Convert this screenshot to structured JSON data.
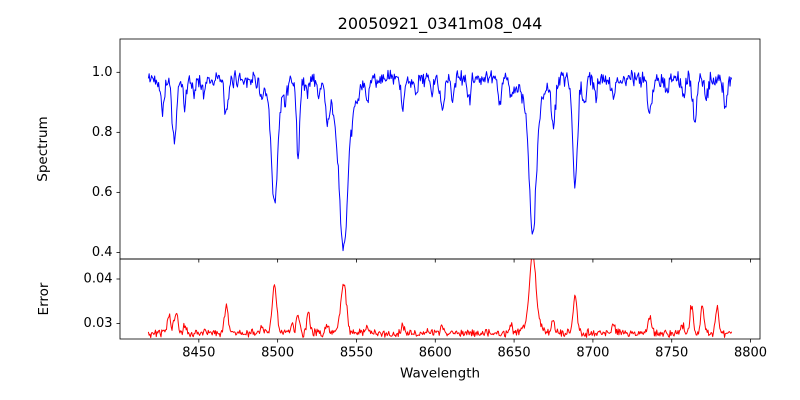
{
  "chart_data": {
    "type": "line",
    "title": "20050921_0341m08_044",
    "xlabel": "Wavelength",
    "grid": false,
    "legend": null,
    "xlim": [
      8400,
      8806
    ],
    "xticks": [
      8450,
      8500,
      8550,
      8600,
      8650,
      8700,
      8750,
      8800
    ],
    "xtick_labels": [
      "8450",
      "8500",
      "8550",
      "8600",
      "8650",
      "8700",
      "8750",
      "8800"
    ],
    "noise_seed": 42,
    "charts": [
      {
        "series_name": "spectrum-line",
        "ylabel": "Spectrum",
        "color": "#0000ff",
        "ylim": [
          0.378,
          1.111
        ],
        "yticks": [
          0.4,
          0.6,
          0.8,
          1.0
        ],
        "ytick_labels": [
          "0.4",
          "0.6",
          "0.8",
          "1.0"
        ],
        "model": {
          "x_start": 8418,
          "x_end": 8788,
          "x_step": 0.5,
          "base": 0.978,
          "noise": 0.033,
          "features": [
            {
              "center": 8427.0,
              "amp": -0.095,
              "sigma": 1.2
            },
            {
              "center": 8434.5,
              "amp": -0.21,
              "sigma": 1.4
            },
            {
              "center": 8441.0,
              "amp": -0.09,
              "sigma": 1.1
            },
            {
              "center": 8447.0,
              "amp": -0.05,
              "sigma": 1.0
            },
            {
              "center": 8453.0,
              "amp": -0.045,
              "sigma": 1.0
            },
            {
              "center": 8467.5,
              "amp": -0.125,
              "sigma": 1.3
            },
            {
              "center": 8490.0,
              "amp": -0.055,
              "sigma": 1.0
            },
            {
              "center": 8498.0,
              "amp": -0.33,
              "sigma": 1.9
            },
            {
              "center": 8498.0,
              "amp": -0.09,
              "sigma": 4.5
            },
            {
              "center": 8505.0,
              "amp": -0.04,
              "sigma": 0.9
            },
            {
              "center": 8513.0,
              "amp": -0.245,
              "sigma": 1.1
            },
            {
              "center": 8518.5,
              "amp": -0.05,
              "sigma": 0.9
            },
            {
              "center": 8526.0,
              "amp": -0.05,
              "sigma": 0.9
            },
            {
              "center": 8531.5,
              "amp": -0.1,
              "sigma": 1.1
            },
            {
              "center": 8541.8,
              "amp": -0.38,
              "sigma": 2.4
            },
            {
              "center": 8541.8,
              "amp": -0.19,
              "sigma": 6.0
            },
            {
              "center": 8557.0,
              "amp": -0.07,
              "sigma": 1.0
            },
            {
              "center": 8579.5,
              "amp": -0.1,
              "sigma": 1.1
            },
            {
              "center": 8588.0,
              "amp": -0.05,
              "sigma": 0.9
            },
            {
              "center": 8598.0,
              "amp": -0.05,
              "sigma": 0.9
            },
            {
              "center": 8604.5,
              "amp": -0.11,
              "sigma": 1.1
            },
            {
              "center": 8611.0,
              "amp": -0.06,
              "sigma": 0.9
            },
            {
              "center": 8621.5,
              "amp": -0.07,
              "sigma": 1.0
            },
            {
              "center": 8641.0,
              "amp": -0.07,
              "sigma": 1.0
            },
            {
              "center": 8648.5,
              "amp": -0.07,
              "sigma": 1.0
            },
            {
              "center": 8661.8,
              "amp": -0.4,
              "sigma": 2.1
            },
            {
              "center": 8661.8,
              "amp": -0.12,
              "sigma": 5.5
            },
            {
              "center": 8675.0,
              "amp": -0.155,
              "sigma": 1.2
            },
            {
              "center": 8688.6,
              "amp": -0.345,
              "sigma": 1.6
            },
            {
              "center": 8694.5,
              "amp": -0.1,
              "sigma": 1.0
            },
            {
              "center": 8702.0,
              "amp": -0.05,
              "sigma": 0.9
            },
            {
              "center": 8713.0,
              "amp": -0.07,
              "sigma": 1.0
            },
            {
              "center": 8736.0,
              "amp": -0.12,
              "sigma": 1.2
            },
            {
              "center": 8747.0,
              "amp": -0.05,
              "sigma": 0.9
            },
            {
              "center": 8757.5,
              "amp": -0.07,
              "sigma": 1.0
            },
            {
              "center": 8764.5,
              "amp": -0.14,
              "sigma": 1.2
            },
            {
              "center": 8772.0,
              "amp": -0.07,
              "sigma": 1.0
            },
            {
              "center": 8784.0,
              "amp": -0.09,
              "sigma": 1.1
            }
          ]
        }
      },
      {
        "series_name": "error-line",
        "ylabel": "Error",
        "color": "#ff0000",
        "ylim": [
          0.0265,
          0.0445
        ],
        "yticks": [
          0.03,
          0.04
        ],
        "ytick_labels": [
          "0.03",
          "0.04"
        ],
        "model": {
          "x_start": 8418,
          "x_end": 8788,
          "x_step": 0.5,
          "base": 0.0278,
          "noise": 0.0011,
          "features": [
            {
              "center": 8431.0,
              "amp": 0.0038,
              "sigma": 1.1
            },
            {
              "center": 8435.5,
              "amp": 0.0042,
              "sigma": 1.2
            },
            {
              "center": 8441.0,
              "amp": 0.0018,
              "sigma": 0.9
            },
            {
              "center": 8467.5,
              "amp": 0.0068,
              "sigma": 1.1
            },
            {
              "center": 8490.0,
              "amp": 0.0012,
              "sigma": 0.9
            },
            {
              "center": 8498.0,
              "amp": 0.0108,
              "sigma": 1.4
            },
            {
              "center": 8509.0,
              "amp": 0.0025,
              "sigma": 0.9
            },
            {
              "center": 8513.0,
              "amp": 0.0045,
              "sigma": 1.0
            },
            {
              "center": 8519.5,
              "amp": 0.0045,
              "sigma": 1.0
            },
            {
              "center": 8531.5,
              "amp": 0.0018,
              "sigma": 0.9
            },
            {
              "center": 8541.8,
              "amp": 0.0115,
              "sigma": 1.8
            },
            {
              "center": 8557.0,
              "amp": 0.0012,
              "sigma": 0.8
            },
            {
              "center": 8579.5,
              "amp": 0.0018,
              "sigma": 0.9
            },
            {
              "center": 8604.5,
              "amp": 0.0018,
              "sigma": 0.9
            },
            {
              "center": 8648.0,
              "amp": 0.0015,
              "sigma": 0.9
            },
            {
              "center": 8661.8,
              "amp": 0.0155,
              "sigma": 2.0
            },
            {
              "center": 8661.8,
              "amp": 0.002,
              "sigma": 6.0
            },
            {
              "center": 8675.0,
              "amp": 0.0028,
              "sigma": 1.0
            },
            {
              "center": 8688.6,
              "amp": 0.0082,
              "sigma": 1.3
            },
            {
              "center": 8713.0,
              "amp": 0.0018,
              "sigma": 0.9
            },
            {
              "center": 8736.0,
              "amp": 0.0038,
              "sigma": 1.0
            },
            {
              "center": 8757.0,
              "amp": 0.002,
              "sigma": 0.9
            },
            {
              "center": 8762.5,
              "amp": 0.0062,
              "sigma": 1.0
            },
            {
              "center": 8769.5,
              "amp": 0.006,
              "sigma": 1.0
            },
            {
              "center": 8779.0,
              "amp": 0.0058,
              "sigma": 1.0
            }
          ]
        }
      }
    ]
  }
}
